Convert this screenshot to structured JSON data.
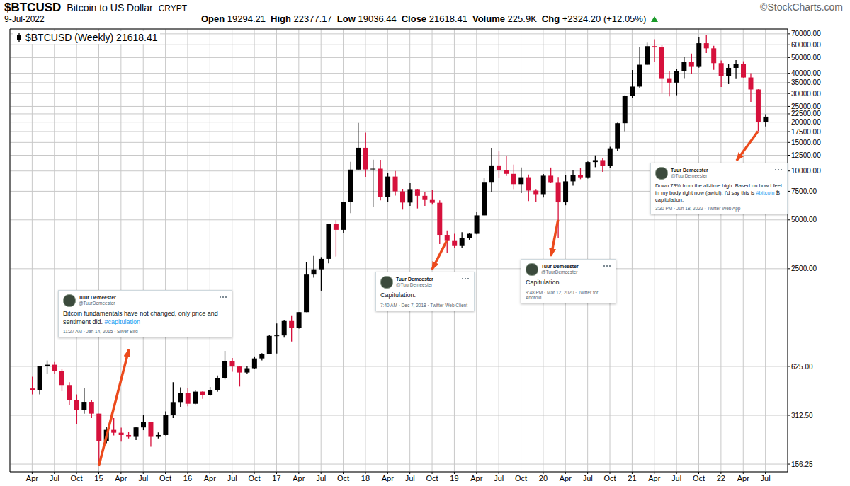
{
  "chart_data": {
    "type": "candlestick",
    "title": "$BTCUSD",
    "subtitle": "Bitcoin to US Dollar",
    "exchange": "CRYPT",
    "credit": "©StockCharts.com",
    "date": "9-Jul-2022",
    "quote": [
      {
        "label": "Open",
        "text": "19294.21"
      },
      {
        "label": "High",
        "text": "22377.17"
      },
      {
        "label": "Low",
        "text": "19036.44"
      },
      {
        "label": "Close",
        "text": "21618.41"
      },
      {
        "label": "Volume",
        "text": "225.9K"
      },
      {
        "label": "Chg",
        "text": "+2324.20 (+12.05%)"
      }
    ],
    "log": "y",
    "grid": true,
    "xlim": [
      "2014-01",
      "2022-10"
    ],
    "xticks": [
      {
        "value": "2014-04",
        "label": "Apr"
      },
      {
        "value": "2014-07",
        "label": "Jul"
      },
      {
        "value": "2014-10",
        "label": "Oct"
      },
      {
        "value": "2015-01",
        "label": "15"
      },
      {
        "value": "2015-04",
        "label": "Apr"
      },
      {
        "value": "2015-07",
        "label": "Jul"
      },
      {
        "value": "2015-10",
        "label": "Oct"
      },
      {
        "value": "2016-01",
        "label": "16"
      },
      {
        "value": "2016-04",
        "label": "Apr"
      },
      {
        "value": "2016-07",
        "label": "Jul"
      },
      {
        "value": "2016-10",
        "label": "Oct"
      },
      {
        "value": "2017-01",
        "label": "17"
      },
      {
        "value": "2017-04",
        "label": "Apr"
      },
      {
        "value": "2017-07",
        "label": "Jul"
      },
      {
        "value": "2017-10",
        "label": "Oct"
      },
      {
        "value": "2018-01",
        "label": "18"
      },
      {
        "value": "2018-04",
        "label": "Apr"
      },
      {
        "value": "2018-07",
        "label": "Jul"
      },
      {
        "value": "2018-10",
        "label": "Oct"
      },
      {
        "value": "2019-01",
        "label": "19"
      },
      {
        "value": "2019-04",
        "label": "Apr"
      },
      {
        "value": "2019-07",
        "label": "Jul"
      },
      {
        "value": "2019-10",
        "label": "Oct"
      },
      {
        "value": "2020-01",
        "label": "20"
      },
      {
        "value": "2020-04",
        "label": "Apr"
      },
      {
        "value": "2020-07",
        "label": "Jul"
      },
      {
        "value": "2020-10",
        "label": "Oct"
      },
      {
        "value": "2021-01",
        "label": "21"
      },
      {
        "value": "2021-04",
        "label": "Apr"
      },
      {
        "value": "2021-07",
        "label": "Jul"
      },
      {
        "value": "2021-10",
        "label": "Oct"
      },
      {
        "value": "2022-01",
        "label": "22"
      },
      {
        "value": "2022-04",
        "label": "Apr"
      },
      {
        "value": "2022-07",
        "label": "Jul"
      }
    ],
    "ylim": [
      140,
      75000
    ],
    "yticks": [
      156.25,
      {
        "value": 312.5,
        "label": "312.50"
      },
      {
        "value": 625,
        "label": "625.00"
      },
      {
        "value": 2500,
        "label": "2500.00"
      },
      {
        "value": 5000,
        "label": "5000.00"
      },
      {
        "value": 7500,
        "label": "7500.00"
      },
      {
        "value": 10000,
        "label": "10000.00"
      },
      {
        "value": 12500,
        "label": "12500.00"
      },
      {
        "value": 15000,
        "label": "15000.00"
      },
      {
        "value": 17500,
        "label": "17500.00"
      },
      {
        "value": 20000,
        "label": "20000.00"
      },
      {
        "value": 22500,
        "label": "22500.00"
      },
      {
        "value": 25000,
        "label": "25000.00"
      },
      {
        "value": 30000,
        "label": "30000.00"
      },
      {
        "value": 35000,
        "label": "35000.00"
      },
      {
        "value": 40000,
        "label": "40000.00"
      },
      {
        "value": 50000,
        "label": "50000.00"
      },
      {
        "value": 60000,
        "label": "60000.00"
      },
      {
        "value": 70000,
        "label": "70000.00"
      }
    ],
    "x": [
      "2014-04",
      "2014-05",
      "2014-06",
      "2014-07",
      "2014-08",
      "2014-09",
      "2014-10",
      "2014-11",
      "2014-12",
      "2015-01",
      "2015-02",
      "2015-03",
      "2015-04",
      "2015-05",
      "2015-06",
      "2015-07",
      "2015-08",
      "2015-09",
      "2015-10",
      "2015-11",
      "2015-12",
      "2016-01",
      "2016-02",
      "2016-03",
      "2016-04",
      "2016-05",
      "2016-06",
      "2016-07",
      "2016-08",
      "2016-09",
      "2016-10",
      "2016-11",
      "2016-12",
      "2017-01",
      "2017-02",
      "2017-03",
      "2017-04",
      "2017-05",
      "2017-06",
      "2017-07",
      "2017-08",
      "2017-09",
      "2017-10",
      "2017-11",
      "2017-12",
      "2018-01",
      "2018-02",
      "2018-03",
      "2018-04",
      "2018-05",
      "2018-06",
      "2018-07",
      "2018-08",
      "2018-09",
      "2018-10",
      "2018-11",
      "2018-12",
      "2019-01",
      "2019-02",
      "2019-03",
      "2019-04",
      "2019-05",
      "2019-06",
      "2019-07",
      "2019-08",
      "2019-09",
      "2019-10",
      "2019-11",
      "2019-12",
      "2020-01",
      "2020-02",
      "2020-03",
      "2020-04",
      "2020-05",
      "2020-06",
      "2020-07",
      "2020-08",
      "2020-09",
      "2020-10",
      "2020-11",
      "2020-12",
      "2021-01",
      "2021-02",
      "2021-03",
      "2021-04",
      "2021-05",
      "2021-06",
      "2021-07",
      "2021-08",
      "2021-09",
      "2021-10",
      "2021-11",
      "2021-12",
      "2022-01",
      "2022-02",
      "2022-03",
      "2022-04",
      "2022-05",
      "2022-06",
      "2022-07"
    ],
    "series": [
      {
        "name": "$BTCUSD (Weekly) 21618.41",
        "open": [
          457,
          447,
          628,
          640,
          585,
          480,
          388,
          338,
          378,
          320,
          217,
          254,
          244,
          236,
          230,
          263,
          284,
          230,
          236,
          314,
          377,
          430,
          368,
          437,
          416,
          448,
          530,
          673,
          624,
          573,
          609,
          700,
          745,
          964,
          970,
          1190,
          1080,
          1350,
          2300,
          2480,
          2875,
          4700,
          4340,
          6450,
          10200,
          13900,
          10220,
          10330,
          6930,
          9240,
          7490,
          6390,
          7730,
          7030,
          6625,
          6370,
          4040,
          3740,
          3450,
          3860,
          4100,
          5330,
          8560,
          10820,
          10090,
          9600,
          8300,
          9150,
          7570,
          7200,
          9350,
          8540,
          6410,
          8630,
          9450,
          9140,
          11350,
          11660,
          10780,
          13800,
          19700,
          28990,
          33110,
          45160,
          58800,
          57750,
          37300,
          35040,
          41460,
          47100,
          43800,
          61300,
          57000,
          46200,
          38480,
          43190,
          45540,
          37700,
          31800,
          19950
        ],
        "high": [
          540,
          630,
          680,
          665,
          600,
          500,
          420,
          460,
          390,
          320,
          265,
          300,
          262,
          247,
          265,
          315,
          285,
          245,
          330,
          500,
          465,
          460,
          445,
          440,
          467,
          550,
          780,
          705,
          627,
          628,
          720,
          755,
          975,
          1150,
          1210,
          1290,
          1350,
          2760,
          3000,
          2950,
          4750,
          4980,
          6450,
          11400,
          19800,
          17250,
          11750,
          11700,
          9750,
          10000,
          7760,
          8500,
          7760,
          7410,
          7680,
          6600,
          4300,
          4100,
          4200,
          4150,
          5600,
          9100,
          13880,
          13200,
          12330,
          10950,
          10500,
          9510,
          7750,
          9570,
          10500,
          9190,
          9480,
          10070,
          10380,
          11440,
          12470,
          12070,
          14100,
          19850,
          29300,
          41950,
          58350,
          61790,
          64860,
          59600,
          41300,
          42400,
          50500,
          52900,
          67000,
          69000,
          59100,
          47990,
          45800,
          48200,
          47450,
          40000,
          31900,
          22377.17
        ],
        "low": [
          420,
          420,
          560,
          565,
          440,
          360,
          275,
          320,
          300,
          152,
          210,
          235,
          215,
          225,
          220,
          253,
          200,
          225,
          235,
          300,
          350,
          355,
          365,
          395,
          412,
          436,
          520,
          580,
          470,
          565,
          605,
          680,
          745,
          750,
          940,
          890,
          1070,
          1350,
          2200,
          1830,
          2700,
          2970,
          4150,
          5500,
          10100,
          9200,
          6000,
          6600,
          6430,
          7050,
          5780,
          6100,
          5880,
          6100,
          6200,
          3550,
          3120,
          3350,
          3350,
          3770,
          4070,
          5330,
          7450,
          9070,
          9320,
          7730,
          7300,
          6520,
          6430,
          6870,
          8430,
          3850,
          6150,
          8110,
          8900,
          8980,
          10550,
          9880,
          10370,
          13200,
          17600,
          28100,
          32300,
          45000,
          47000,
          30000,
          28800,
          29300,
          37350,
          39600,
          43300,
          53250,
          42000,
          32900,
          34300,
          37200,
          37600,
          26700,
          17600,
          18800
        ],
        "close": [
          447,
          628,
          640,
          585,
          480,
          388,
          338,
          378,
          320,
          217,
          254,
          244,
          236,
          230,
          263,
          284,
          230,
          236,
          314,
          377,
          430,
          368,
          437,
          416,
          448,
          530,
          673,
          624,
          573,
          609,
          700,
          745,
          964,
          970,
          1190,
          1080,
          1350,
          2300,
          2480,
          2875,
          4700,
          4340,
          6450,
          10200,
          13900,
          10220,
          10330,
          6930,
          9240,
          7490,
          6390,
          7730,
          7030,
          6625,
          6370,
          4040,
          3740,
          3450,
          3860,
          4100,
          5330,
          8560,
          10820,
          10090,
          9600,
          8300,
          9150,
          7570,
          7200,
          9350,
          8540,
          6410,
          8630,
          9450,
          9140,
          11350,
          11660,
          10780,
          13800,
          19700,
          28990,
          33110,
          45160,
          58800,
          57750,
          37300,
          35040,
          41460,
          47100,
          43800,
          61300,
          57000,
          46200,
          38480,
          43190,
          45540,
          37700,
          31800,
          19950,
          21618.41
        ],
        "colors": [
          "#d6113c",
          "#000000",
          "#000000",
          "#d6113c",
          "#d6113c",
          "#d6113c",
          "#d6113c",
          "#000000",
          "#d6113c",
          "#d6113c",
          "#000000",
          "#d6113c",
          "#d6113c",
          "#d6113c",
          "#000000",
          "#000000",
          "#d6113c",
          "#000000",
          "#000000",
          "#000000",
          "#000000",
          "#d6113c",
          "#000000",
          "#d6113c",
          "#000000",
          "#000000",
          "#000000",
          "#d6113c",
          "#d6113c",
          "#000000",
          "#000000",
          "#000000",
          "#000000",
          "#000000",
          "#000000",
          "#d6113c",
          "#000000",
          "#000000",
          "#000000",
          "#000000",
          "#000000",
          "#d6113c",
          "#000000",
          "#000000",
          "#000000",
          "#d6113c",
          "#000000",
          "#d6113c",
          "#000000",
          "#d6113c",
          "#d6113c",
          "#000000",
          "#d6113c",
          "#d6113c",
          "#d6113c",
          "#d6113c",
          "#d6113c",
          "#d6113c",
          "#000000",
          "#000000",
          "#000000",
          "#000000",
          "#000000",
          "#d6113c",
          "#d6113c",
          "#d6113c",
          "#000000",
          "#d6113c",
          "#d6113c",
          "#000000",
          "#d6113c",
          "#d6113c",
          "#000000",
          "#000000",
          "#d6113c",
          "#000000",
          "#000000",
          "#d6113c",
          "#000000",
          "#000000",
          "#000000",
          "#000000",
          "#000000",
          "#000000",
          "#d6113c",
          "#d6113c",
          "#d6113c",
          "#000000",
          "#000000",
          "#d6113c",
          "#000000",
          "#d6113c",
          "#d6113c",
          "#d6113c",
          "#000000",
          "#000000",
          "#d6113c",
          "#d6113c",
          "#d6113c",
          "#000000"
        ]
      }
    ],
    "annotations": [
      {
        "author": "Tuur Demeester",
        "handle": "@TuurDemeester",
        "text": "Bitcoin fundamentals have not changed, only price and sentiment did. #capitulation",
        "timestamp": "11:27 AM · Jan 14, 2015 · Silver Bird",
        "x": "2015-01",
        "y": 152
      },
      {
        "author": "Tuur Demeester",
        "handle": "@TuurDemeester",
        "text": "Capitulation.",
        "timestamp": "7:40 AM · Dec 7, 2018 · Twitter Web Client",
        "x": "2018-12",
        "y": 3740
      },
      {
        "author": "Tuur Demeester",
        "handle": "@TuurDemeester",
        "text": "Capitulation.",
        "timestamp": "9:48 PM · Mar 12, 2020 · Twitter for Android",
        "x": "2020-03",
        "y": 5000
      },
      {
        "author": "Tuur Demeester",
        "handle": "@TuurDemeester",
        "text": "Down 73% from the all-time high. Based on how I feel in my body right now (awful), I'd say this is #bitcoin ₿ capitulation.",
        "timestamp": "3:30 PM · Jun 18, 2022 · Twitter Web App",
        "x": "2022-06",
        "y": 17600
      }
    ]
  }
}
